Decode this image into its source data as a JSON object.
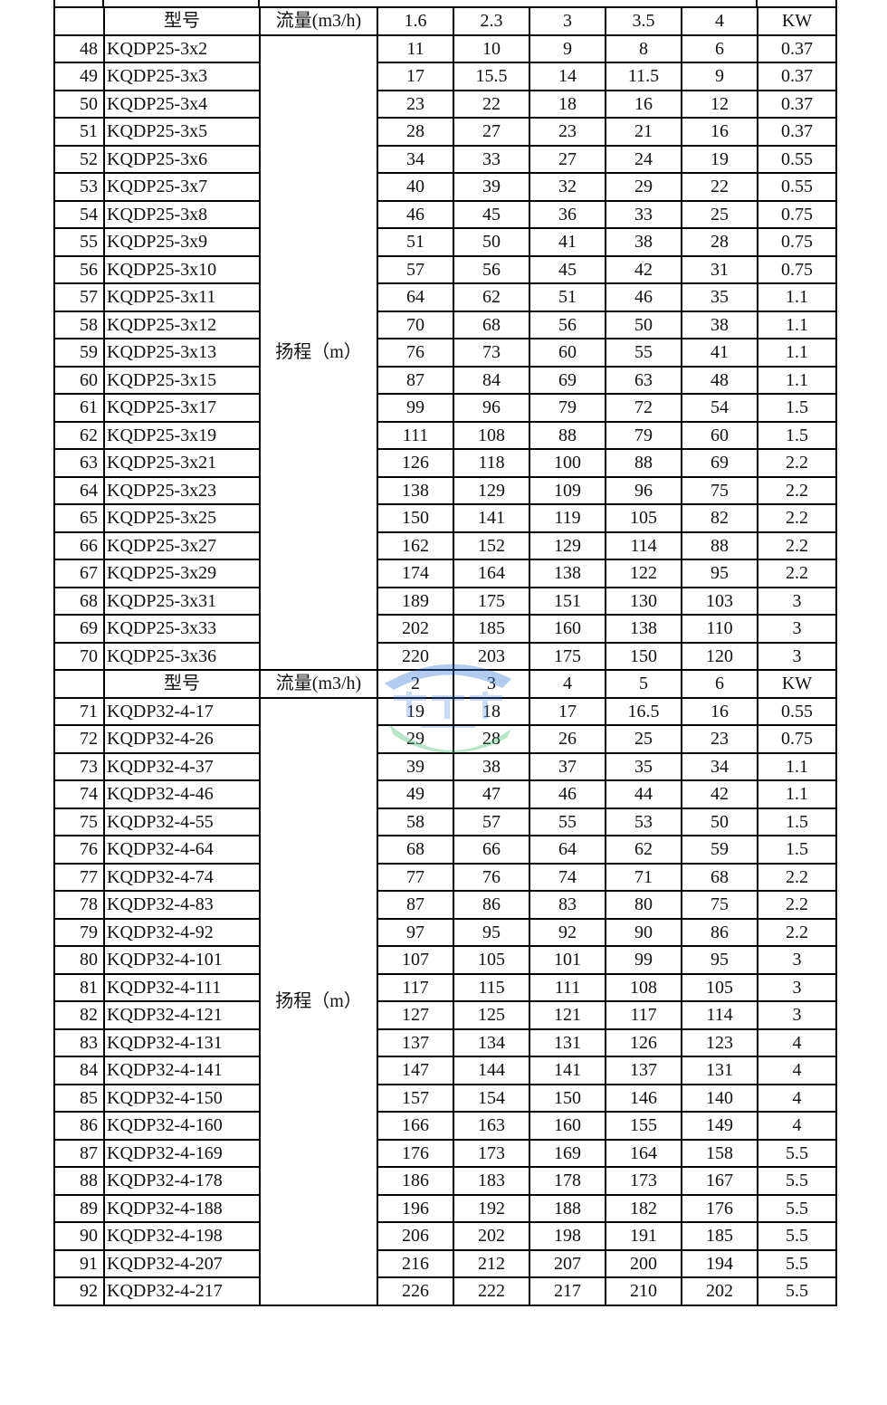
{
  "sections": [
    {
      "header": {
        "model": "型号",
        "flow": "流量(m3/h)",
        "flows": [
          "1.6",
          "2.3",
          "3",
          "3.5",
          "4"
        ],
        "power": "KW"
      },
      "head_label": "扬程（m）",
      "rows": [
        [
          "48",
          "KQDP25-3x2",
          "11",
          "10",
          "9",
          "8",
          "6",
          "0.37"
        ],
        [
          "49",
          "KQDP25-3x3",
          "17",
          "15.5",
          "14",
          "11.5",
          "9",
          "0.37"
        ],
        [
          "50",
          "KQDP25-3x4",
          "23",
          "22",
          "18",
          "16",
          "12",
          "0.37"
        ],
        [
          "51",
          "KQDP25-3x5",
          "28",
          "27",
          "23",
          "21",
          "16",
          "0.37"
        ],
        [
          "52",
          "KQDP25-3x6",
          "34",
          "33",
          "27",
          "24",
          "19",
          "0.55"
        ],
        [
          "53",
          "KQDP25-3x7",
          "40",
          "39",
          "32",
          "29",
          "22",
          "0.55"
        ],
        [
          "54",
          "KQDP25-3x8",
          "46",
          "45",
          "36",
          "33",
          "25",
          "0.75"
        ],
        [
          "55",
          "KQDP25-3x9",
          "51",
          "50",
          "41",
          "38",
          "28",
          "0.75"
        ],
        [
          "56",
          "KQDP25-3x10",
          "57",
          "56",
          "45",
          "42",
          "31",
          "0.75"
        ],
        [
          "57",
          "KQDP25-3x11",
          "64",
          "62",
          "51",
          "46",
          "35",
          "1.1"
        ],
        [
          "58",
          "KQDP25-3x12",
          "70",
          "68",
          "56",
          "50",
          "38",
          "1.1"
        ],
        [
          "59",
          "KQDP25-3x13",
          "76",
          "73",
          "60",
          "55",
          "41",
          "1.1"
        ],
        [
          "60",
          "KQDP25-3x15",
          "87",
          "84",
          "69",
          "63",
          "48",
          "1.1"
        ],
        [
          "61",
          "KQDP25-3x17",
          "99",
          "96",
          "79",
          "72",
          "54",
          "1.5"
        ],
        [
          "62",
          "KQDP25-3x19",
          "111",
          "108",
          "88",
          "79",
          "60",
          "1.5"
        ],
        [
          "63",
          "KQDP25-3x21",
          "126",
          "118",
          "100",
          "88",
          "69",
          "2.2"
        ],
        [
          "64",
          "KQDP25-3x23",
          "138",
          "129",
          "109",
          "96",
          "75",
          "2.2"
        ],
        [
          "65",
          "KQDP25-3x25",
          "150",
          "141",
          "119",
          "105",
          "82",
          "2.2"
        ],
        [
          "66",
          "KQDP25-3x27",
          "162",
          "152",
          "129",
          "114",
          "88",
          "2.2"
        ],
        [
          "67",
          "KQDP25-3x29",
          "174",
          "164",
          "138",
          "122",
          "95",
          "2.2"
        ],
        [
          "68",
          "KQDP25-3x31",
          "189",
          "175",
          "151",
          "130",
          "103",
          "3"
        ],
        [
          "69",
          "KQDP25-3x33",
          "202",
          "185",
          "160",
          "138",
          "110",
          "3"
        ],
        [
          "70",
          "KQDP25-3x36",
          "220",
          "203",
          "175",
          "150",
          "120",
          "3"
        ]
      ]
    },
    {
      "header": {
        "model": "型号",
        "flow": "流量(m3/h)",
        "flows": [
          "2",
          "3",
          "4",
          "5",
          "6"
        ],
        "power": "KW"
      },
      "head_label": "扬程（m）",
      "rows": [
        [
          "71",
          "KQDP32-4-17",
          "19",
          "18",
          "17",
          "16.5",
          "16",
          "0.55"
        ],
        [
          "72",
          "KQDP32-4-26",
          "29",
          "28",
          "26",
          "25",
          "23",
          "0.75"
        ],
        [
          "73",
          "KQDP32-4-37",
          "39",
          "38",
          "37",
          "35",
          "34",
          "1.1"
        ],
        [
          "74",
          "KQDP32-4-46",
          "49",
          "47",
          "46",
          "44",
          "42",
          "1.1"
        ],
        [
          "75",
          "KQDP32-4-55",
          "58",
          "57",
          "55",
          "53",
          "50",
          "1.5"
        ],
        [
          "76",
          "KQDP32-4-64",
          "68",
          "66",
          "64",
          "62",
          "59",
          "1.5"
        ],
        [
          "77",
          "KQDP32-4-74",
          "77",
          "76",
          "74",
          "71",
          "68",
          "2.2"
        ],
        [
          "78",
          "KQDP32-4-83",
          "87",
          "86",
          "83",
          "80",
          "75",
          "2.2"
        ],
        [
          "79",
          "KQDP32-4-92",
          "97",
          "95",
          "92",
          "90",
          "86",
          "2.2"
        ],
        [
          "80",
          "KQDP32-4-101",
          "107",
          "105",
          "101",
          "99",
          "95",
          "3"
        ],
        [
          "81",
          "KQDP32-4-111",
          "117",
          "115",
          "111",
          "108",
          "105",
          "3"
        ],
        [
          "82",
          "KQDP32-4-121",
          "127",
          "125",
          "121",
          "117",
          "114",
          "3"
        ],
        [
          "83",
          "KQDP32-4-131",
          "137",
          "134",
          "131",
          "126",
          "123",
          "4"
        ],
        [
          "84",
          "KQDP32-4-141",
          "147",
          "144",
          "141",
          "137",
          "131",
          "4"
        ],
        [
          "85",
          "KQDP32-4-150",
          "157",
          "154",
          "150",
          "146",
          "140",
          "4"
        ],
        [
          "86",
          "KQDP32-4-160",
          "166",
          "163",
          "160",
          "155",
          "149",
          "4"
        ],
        [
          "87",
          "KQDP32-4-169",
          "176",
          "173",
          "169",
          "164",
          "158",
          "5.5"
        ],
        [
          "88",
          "KQDP32-4-178",
          "186",
          "183",
          "178",
          "173",
          "167",
          "5.5"
        ],
        [
          "89",
          "KQDP32-4-188",
          "196",
          "192",
          "188",
          "182",
          "176",
          "5.5"
        ],
        [
          "90",
          "KQDP32-4-198",
          "206",
          "202",
          "198",
          "191",
          "185",
          "5.5"
        ],
        [
          "91",
          "KQDP32-4-207",
          "216",
          "212",
          "207",
          "200",
          "194",
          "5.5"
        ],
        [
          "92",
          "KQDP32-4-217",
          "226",
          "222",
          "217",
          "210",
          "202",
          "5.5"
        ]
      ]
    }
  ],
  "watermark": {
    "text": "LIAOANTAI",
    "colors": [
      "#2f6fd6",
      "#3cb86a"
    ]
  }
}
